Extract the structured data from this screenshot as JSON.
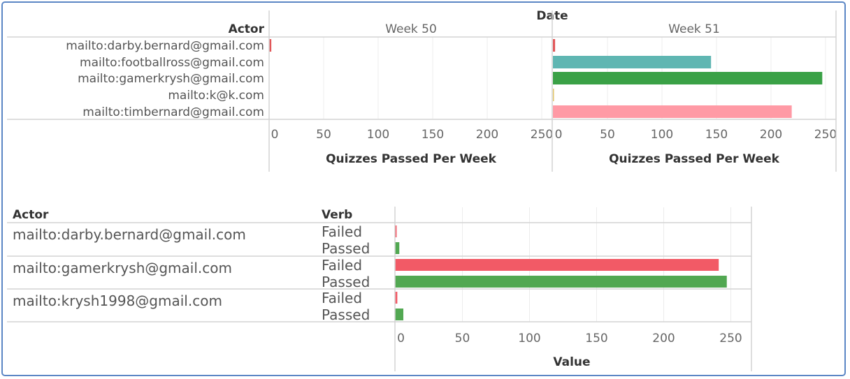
{
  "chart_data": [
    {
      "type": "bar",
      "orientation": "horizontal",
      "column_header_title": "Date",
      "row_header_title": "Actor",
      "panels": [
        "Week 50",
        "Week 51"
      ],
      "categories": [
        "mailto:darby.bernard@gmail.com",
        "mailto:footballross@gmail.com",
        "mailto:gamerkrysh@gmail.com",
        "mailto:k@k.com",
        "mailto:timbernard@gmail.com"
      ],
      "colors": [
        "#e15759",
        "#5fb6b2",
        "#3aa146",
        "#e3c86f",
        "#ff9aa5"
      ],
      "values": {
        "Week 50": [
          2,
          0,
          0,
          0,
          0
        ],
        "Week 51": [
          2,
          145,
          247,
          1,
          219
        ]
      },
      "xlabel": "Quizzes Passed Per Week",
      "xlim": [
        0,
        260
      ],
      "xticks": [
        0,
        50,
        100,
        150,
        200,
        250
      ],
      "grid": true
    },
    {
      "type": "bar",
      "orientation": "horizontal",
      "row_header_titles": [
        "Actor",
        "Verb"
      ],
      "categories": [
        "mailto:darby.bernard@gmail.com",
        "mailto:gamerkrysh@gmail.com",
        "mailto:krysh1998@gmail.com"
      ],
      "verbs": [
        "Failed",
        "Passed"
      ],
      "colors": {
        "Failed": "#f25a66",
        "Passed": "#52a852"
      },
      "values": {
        "Failed": [
          1,
          241,
          1.5
        ],
        "Passed": [
          3,
          247,
          6
        ]
      },
      "xlabel": "Value",
      "xlim": [
        0,
        262
      ],
      "xticks": [
        0,
        50,
        100,
        150,
        200,
        250
      ],
      "grid": true
    }
  ],
  "frame_color": "#5b86c5"
}
